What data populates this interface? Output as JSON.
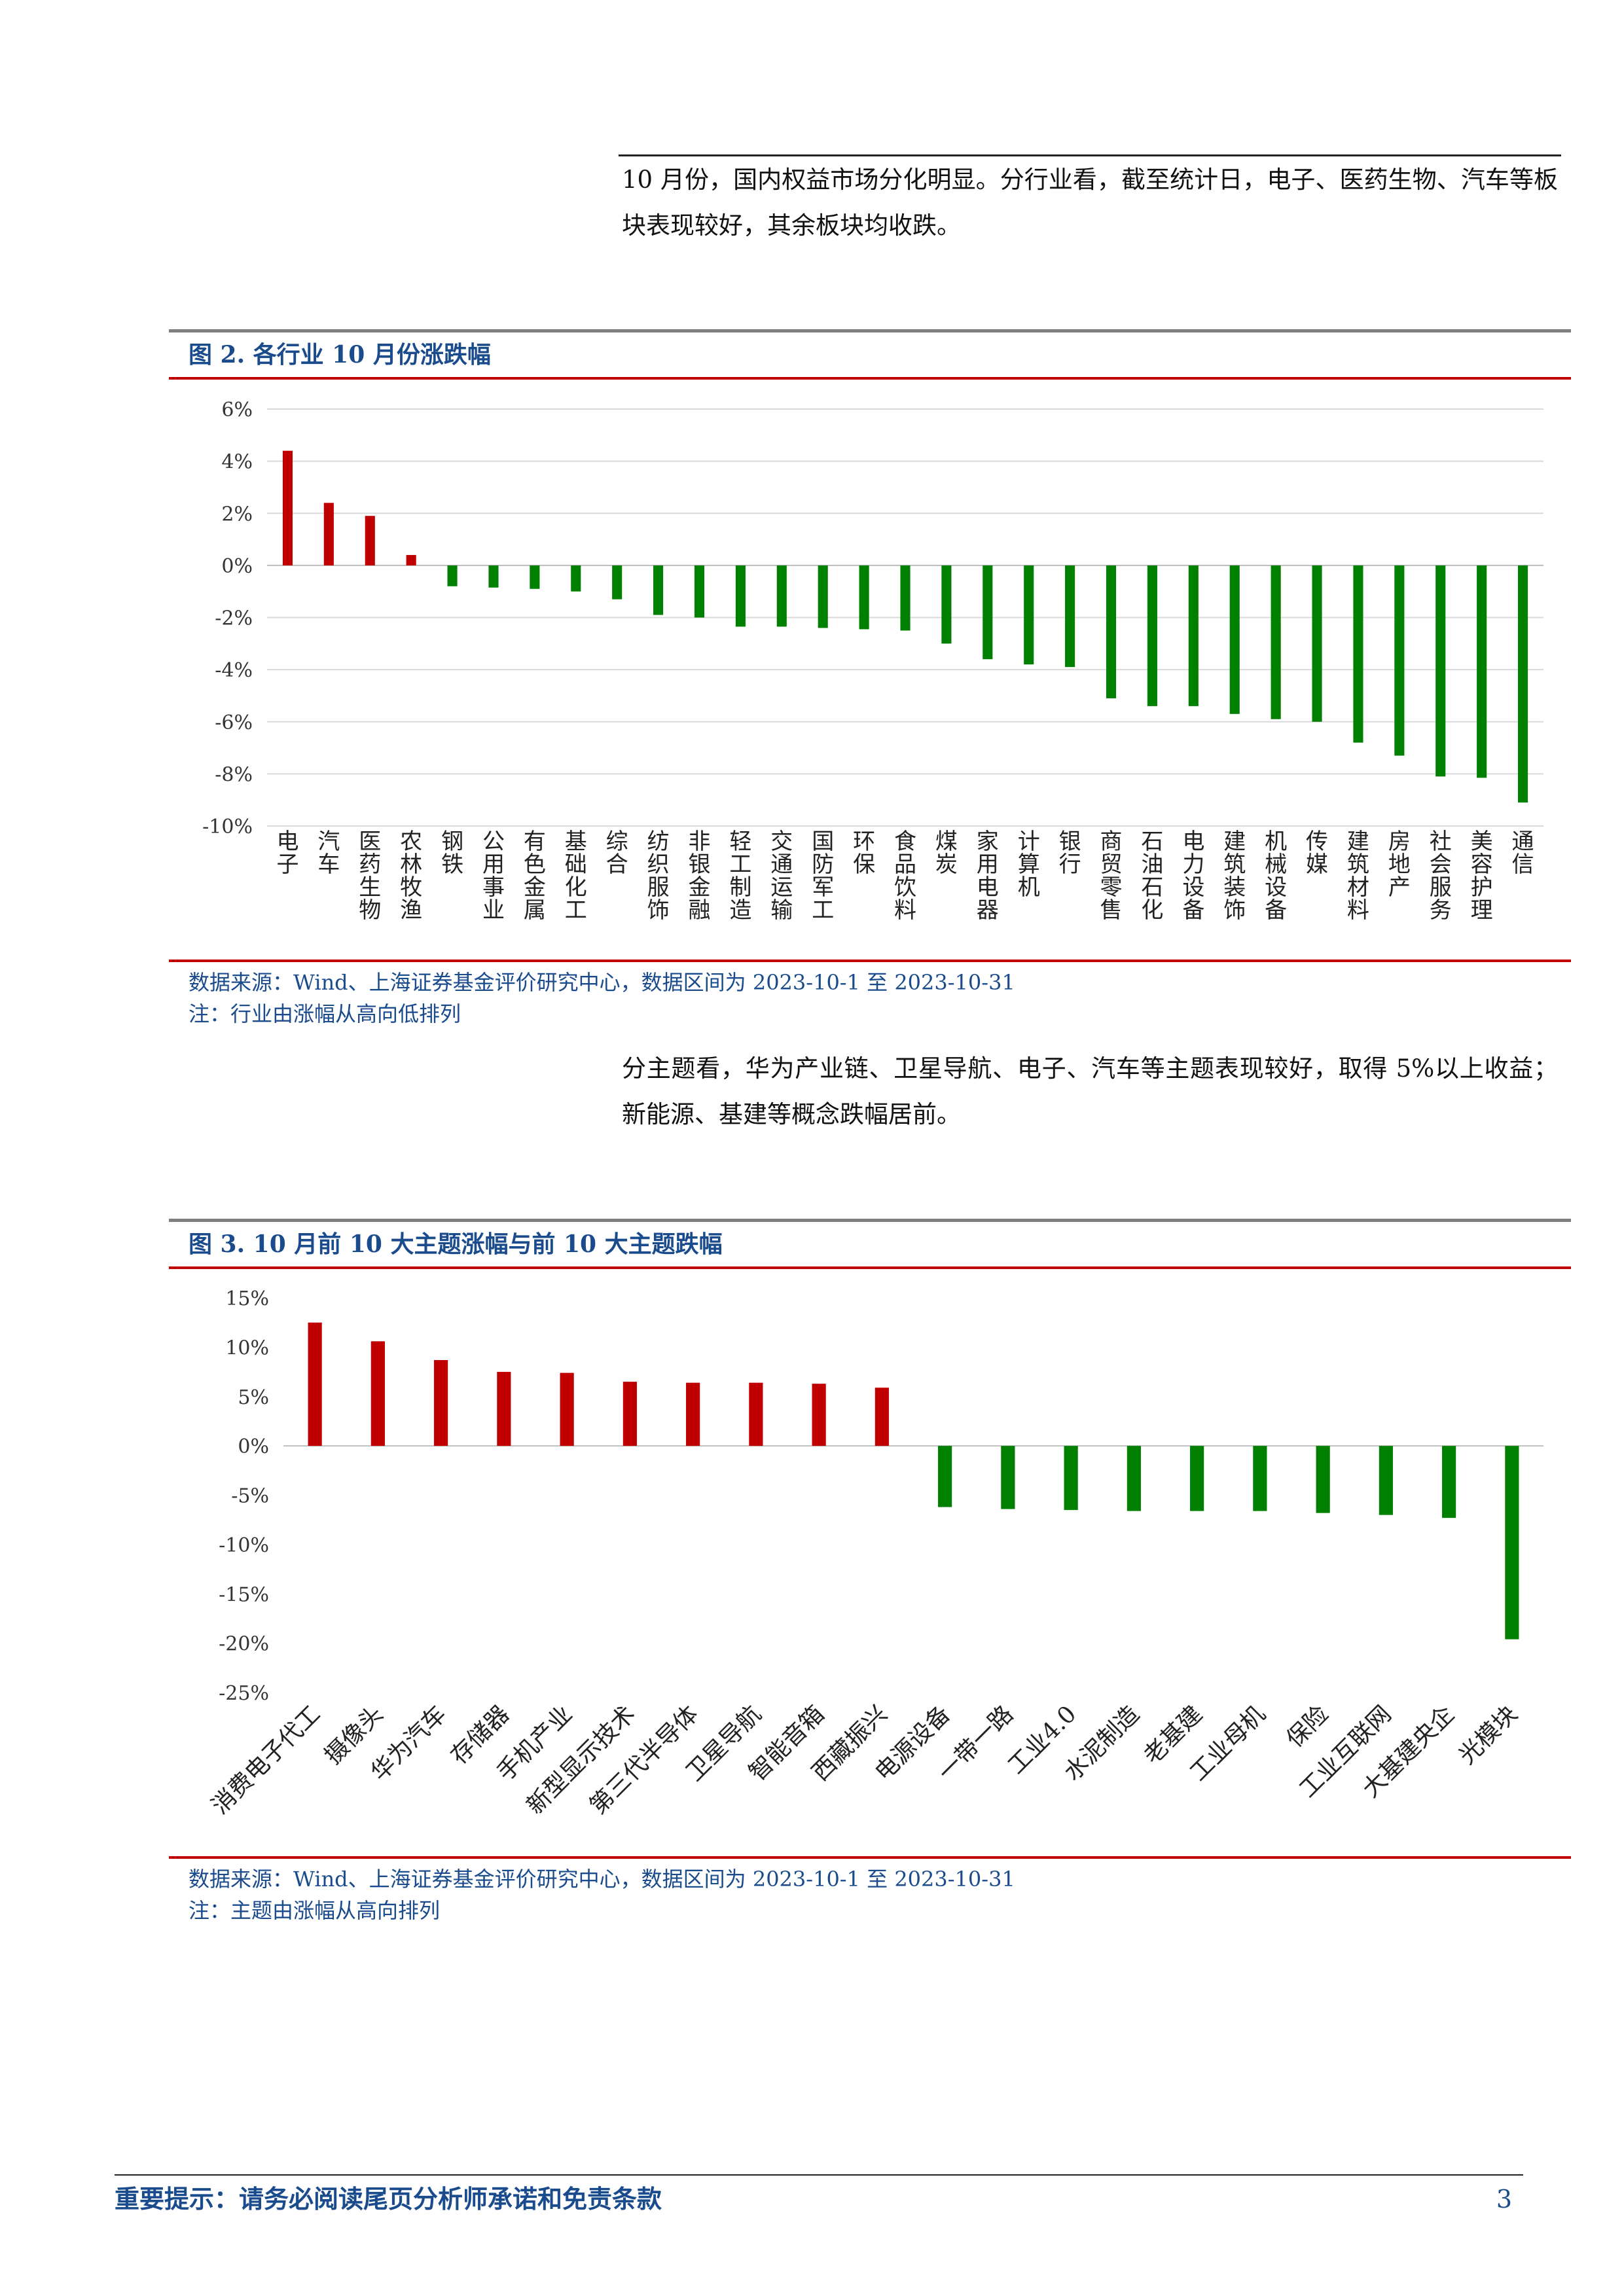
{
  "intro_paragraph": "10 月份，国内权益市场分化明显。分行业看，截至统计日，电子、医药生物、汽车等板块表现较好，其余板块均收跌。",
  "theme_paragraph": "分主题看，华为产业链、卫星导航、电子、汽车等主题表现较好，取得 5%以上收益；新能源、基建等概念跌幅居前。",
  "colors": {
    "positive": "#c00000",
    "negative": "#008000",
    "title": "#1a4b8c",
    "rule_red": "#c00000",
    "rule_gray": "#7f7f7f"
  },
  "figure2": {
    "title": "图 2. 各行业 10 月份涨跌幅",
    "source": "数据来源：Wind、上海证券基金评价研究中心，数据区间为 2023-10-1 至 2023-10-31",
    "note": "注：行业由涨幅从高向低排列"
  },
  "figure3": {
    "title": "图 3. 10 月前 10 大主题涨幅与前 10 大主题跌幅",
    "source": "数据来源：Wind、上海证券基金评价研究中心，数据区间为 2023-10-1 至 2023-10-31",
    "note": "注：主题由涨幅从高向排列"
  },
  "chart_data": [
    {
      "type": "bar",
      "categories": [
        "电子",
        "汽车",
        "医药生物",
        "农林牧渔",
        "钢铁",
        "公用事业",
        "有色金属",
        "基础化工",
        "综合",
        "纺织服饰",
        "非银金融",
        "轻工制造",
        "交通运输",
        "国防军工",
        "环保",
        "食品饮料",
        "煤炭",
        "家用电器",
        "计算机",
        "银行",
        "商贸零售",
        "石油石化",
        "电力设备",
        "建筑装饰",
        "机械设备",
        "传媒",
        "建筑材料",
        "房地产",
        "社会服务",
        "美容护理",
        "通信"
      ],
      "values": [
        4.4,
        2.4,
        1.9,
        0.4,
        -0.8,
        -0.85,
        -0.9,
        -1.0,
        -1.3,
        -1.9,
        -2.0,
        -2.35,
        -2.35,
        -2.4,
        -2.45,
        -2.5,
        -3.0,
        -3.6,
        -3.8,
        -3.9,
        -5.1,
        -5.4,
        -5.4,
        -5.7,
        -5.9,
        -6.0,
        -6.8,
        -7.3,
        -8.1,
        -8.15,
        -9.1
      ],
      "yticks": [
        "6%",
        "4%",
        "2%",
        "0%",
        "-2%",
        "-4%",
        "-6%",
        "-8%",
        "-10%"
      ],
      "ylim": [
        -10,
        6
      ],
      "grid": true
    },
    {
      "type": "bar",
      "categories": [
        "消费电子代工",
        "摄像头",
        "华为汽车",
        "存储器",
        "手机产业",
        "新型显示技术",
        "第三代半导体",
        "卫星导航",
        "智能音箱",
        "西藏振兴",
        "电源设备",
        "一带一路",
        "工业4.0",
        "水泥制造",
        "老基建",
        "工业母机",
        "保险",
        "工业互联网",
        "大基建央企",
        "光模块"
      ],
      "values": [
        12.5,
        10.6,
        8.7,
        7.5,
        7.4,
        6.5,
        6.4,
        6.4,
        6.3,
        5.9,
        -6.2,
        -6.4,
        -6.5,
        -6.6,
        -6.6,
        -6.6,
        -6.8,
        -7.0,
        -7.3,
        -19.6
      ],
      "yticks": [
        "15%",
        "10%",
        "5%",
        "0%",
        "-5%",
        "-10%",
        "-15%",
        "-20%",
        "-25%"
      ],
      "ylim": [
        -25,
        15
      ],
      "grid": false
    }
  ],
  "footer": {
    "disclaimer": "重要提示：请务必阅读尾页分析师承诺和免责条款",
    "page_number": "3"
  }
}
